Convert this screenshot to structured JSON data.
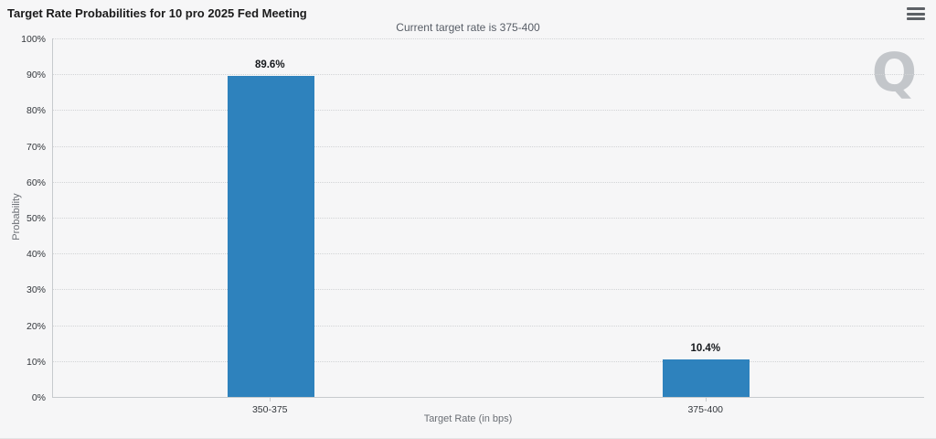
{
  "chart": {
    "watermark": "Q",
    "menu_icon": "hamburger-menu-icon",
    "background_color": "#f6f6f7"
  },
  "chart_data": {
    "type": "bar",
    "title": "Target Rate Probabilities for 10 pro 2025 Fed Meeting",
    "subtitle": "Current target rate is 375-400",
    "categories": [
      "350-375",
      "375-400"
    ],
    "values": [
      89.6,
      10.4
    ],
    "data_labels": [
      "89.6%",
      "10.4%"
    ],
    "xlabel": "Target Rate (in bps)",
    "ylabel": "Probability",
    "ylim": [
      0,
      100
    ],
    "ytick_step": 10,
    "ytick_suffix": "%",
    "grid": "dotted-horizontal",
    "legend": false,
    "bar_color": "#2e82bd"
  }
}
